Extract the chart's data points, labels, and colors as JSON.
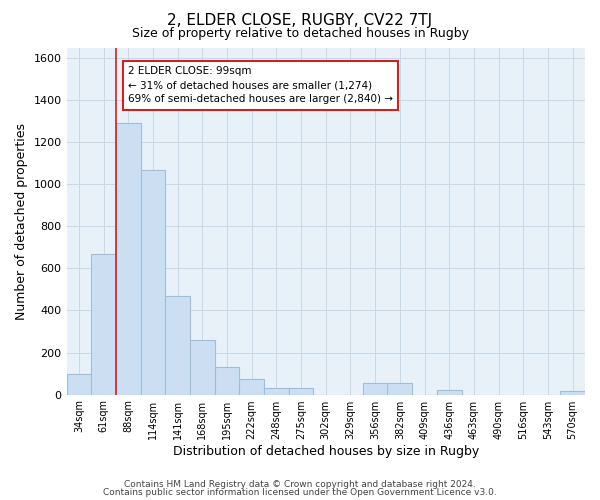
{
  "title1": "2, ELDER CLOSE, RUGBY, CV22 7TJ",
  "title2": "Size of property relative to detached houses in Rugby",
  "xlabel": "Distribution of detached houses by size in Rugby",
  "ylabel": "Number of detached properties",
  "bar_labels": [
    "34sqm",
    "61sqm",
    "88sqm",
    "114sqm",
    "141sqm",
    "168sqm",
    "195sqm",
    "222sqm",
    "248sqm",
    "275sqm",
    "302sqm",
    "329sqm",
    "356sqm",
    "382sqm",
    "409sqm",
    "436sqm",
    "463sqm",
    "490sqm",
    "516sqm",
    "543sqm",
    "570sqm"
  ],
  "bar_values": [
    100,
    670,
    1290,
    1070,
    470,
    260,
    130,
    75,
    30,
    30,
    0,
    0,
    55,
    55,
    0,
    20,
    0,
    0,
    0,
    0,
    15
  ],
  "bar_color": "#ccdff2",
  "bar_edge_color": "#9bbfdd",
  "vline_color": "#cc2222",
  "annotation_title": "2 ELDER CLOSE: 99sqm",
  "annotation_line1": "← 31% of detached houses are smaller (1,274)",
  "annotation_line2": "69% of semi-detached houses are larger (2,840) →",
  "annotation_box_color": "#ffffff",
  "annotation_box_edge": "#cc2222",
  "ylim": [
    0,
    1650
  ],
  "yticks": [
    0,
    200,
    400,
    600,
    800,
    1000,
    1200,
    1400,
    1600
  ],
  "footer1": "Contains HM Land Registry data © Crown copyright and database right 2024.",
  "footer2": "Contains public sector information licensed under the Open Government Licence v3.0.",
  "background_color": "#ffffff",
  "grid_color": "#c8d8e8"
}
